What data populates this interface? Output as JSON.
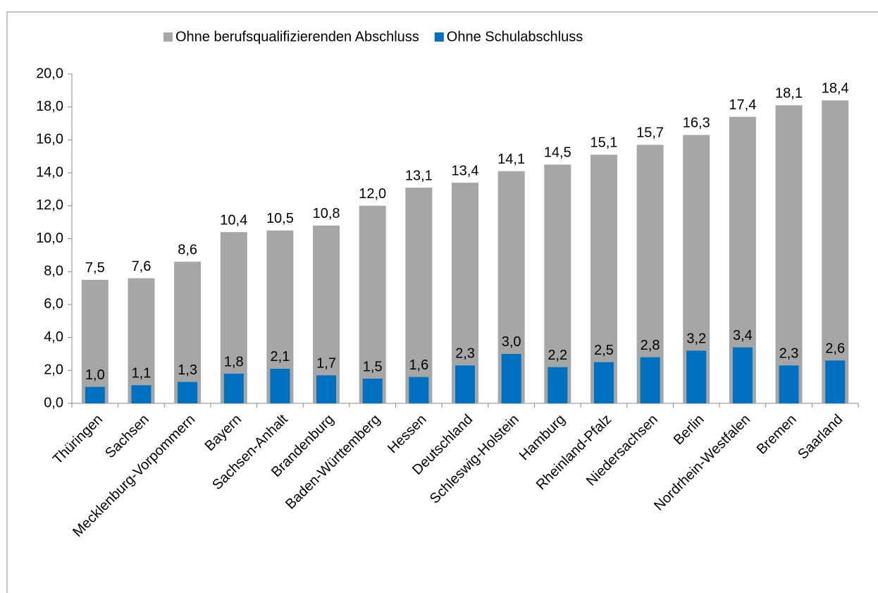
{
  "chart_data": {
    "type": "bar",
    "overlap": true,
    "categories": [
      "Thüringen",
      "Sachsen",
      "Mecklenburg-Vorpommern",
      "Bayern",
      "Sachsen-Anhalt",
      "Brandenburg",
      "Baden-Württemberg",
      "Hessen",
      "Deutschland",
      "Schleswig-Holstein",
      "Hamburg",
      "Rheinland-Pfalz",
      "Niedersachsen",
      "Berlin",
      "Nordrhein-Westfalen",
      "Bremen",
      "Saarland"
    ],
    "series": [
      {
        "name": "Ohne berufsqualifizierenden Abschluss",
        "color": "#a6a6a6",
        "values": [
          7.5,
          7.6,
          8.6,
          10.4,
          10.5,
          10.8,
          12.0,
          13.1,
          13.4,
          14.1,
          14.5,
          15.1,
          15.7,
          16.3,
          17.4,
          18.1,
          18.4
        ],
        "value_labels": [
          "7,5",
          "7,6",
          "8,6",
          "10,4",
          "10,5",
          "10,8",
          "12,0",
          "13,1",
          "13,4",
          "14,1",
          "14,5",
          "15,1",
          "15,7",
          "16,3",
          "17,4",
          "18,1",
          "18,4"
        ]
      },
      {
        "name": "Ohne Schulabschluss",
        "color": "#0070c0",
        "values": [
          1.0,
          1.1,
          1.3,
          1.8,
          2.1,
          1.7,
          1.5,
          1.6,
          2.3,
          3.0,
          2.2,
          2.5,
          2.8,
          3.2,
          3.4,
          2.3,
          2.6
        ],
        "value_labels": [
          "1,0",
          "1,1",
          "1,3",
          "1,8",
          "2,1",
          "1,7",
          "1,5",
          "1,6",
          "2,3",
          "3,0",
          "2,2",
          "2,5",
          "2,8",
          "3,2",
          "3,4",
          "2,3",
          "2,6"
        ]
      }
    ],
    "ylim": [
      0,
      20
    ],
    "yticks": [
      {
        "value": 0,
        "label": "0,0"
      },
      {
        "value": 2,
        "label": "2,0"
      },
      {
        "value": 4,
        "label": "4,0"
      },
      {
        "value": 6,
        "label": "6,0"
      },
      {
        "value": 8,
        "label": "8,0"
      },
      {
        "value": 10,
        "label": "10,0"
      },
      {
        "value": 12,
        "label": "12,0"
      },
      {
        "value": 14,
        "label": "14,0"
      },
      {
        "value": 16,
        "label": "16,0"
      },
      {
        "value": 18,
        "label": "18,0"
      },
      {
        "value": 20,
        "label": "20,0"
      }
    ],
    "grid": false,
    "legend": "top"
  }
}
